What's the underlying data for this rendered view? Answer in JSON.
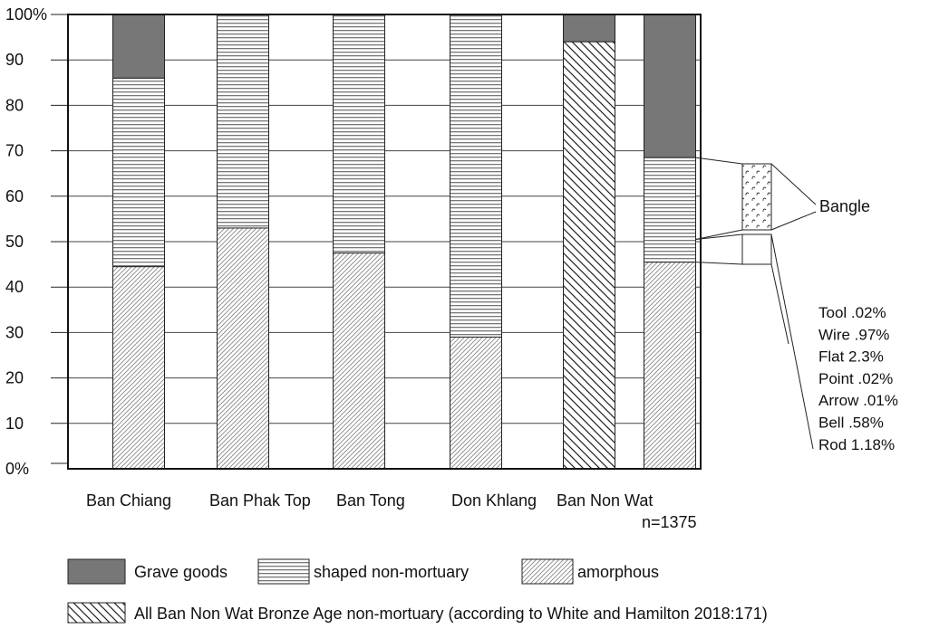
{
  "chart_data": {
    "type": "bar",
    "stacked": true,
    "normalized_percent": true,
    "ylim": [
      0,
      100
    ],
    "yticks": [
      "0%",
      "10",
      "20",
      "30",
      "40",
      "50",
      "60",
      "70",
      "80",
      "90",
      "100%"
    ],
    "grid": true,
    "categories": [
      "Ban Chiang",
      "Ban Phak Top",
      "Ban Tong",
      "Don Khlang",
      "Ban Non Wat",
      "Ban Non Wat"
    ],
    "category_note": "n=1375",
    "series": [
      {
        "key": "amorphous",
        "name": "amorphous",
        "values": [
          44.5,
          53,
          47.5,
          29,
          null,
          45.5
        ]
      },
      {
        "key": "shaped",
        "name": "shaped non-mortuary",
        "values": [
          41.5,
          47,
          52.5,
          71,
          null,
          23
        ]
      },
      {
        "key": "grave",
        "name": "Grave goods",
        "values": [
          14,
          0,
          0,
          0,
          6,
          31.5
        ]
      },
      {
        "key": "allbnw",
        "name": "All Ban Non Wat Bronze Age non-mortuary (according to White and Hamilton 2018:171)",
        "values": [
          null,
          null,
          null,
          null,
          94,
          null
        ]
      }
    ],
    "callouts": {
      "bangle_label": "Bangle",
      "bangle_range": [
        50.5,
        68.5
      ],
      "other_range": [
        45.5,
        50.5
      ],
      "other_items": [
        "Tool .02%",
        "Wire .97%",
        "Flat 2.3%",
        "Point .02%",
        "Arrow .01%",
        "Bell .58%",
        "Rod 1.18%"
      ]
    }
  }
}
